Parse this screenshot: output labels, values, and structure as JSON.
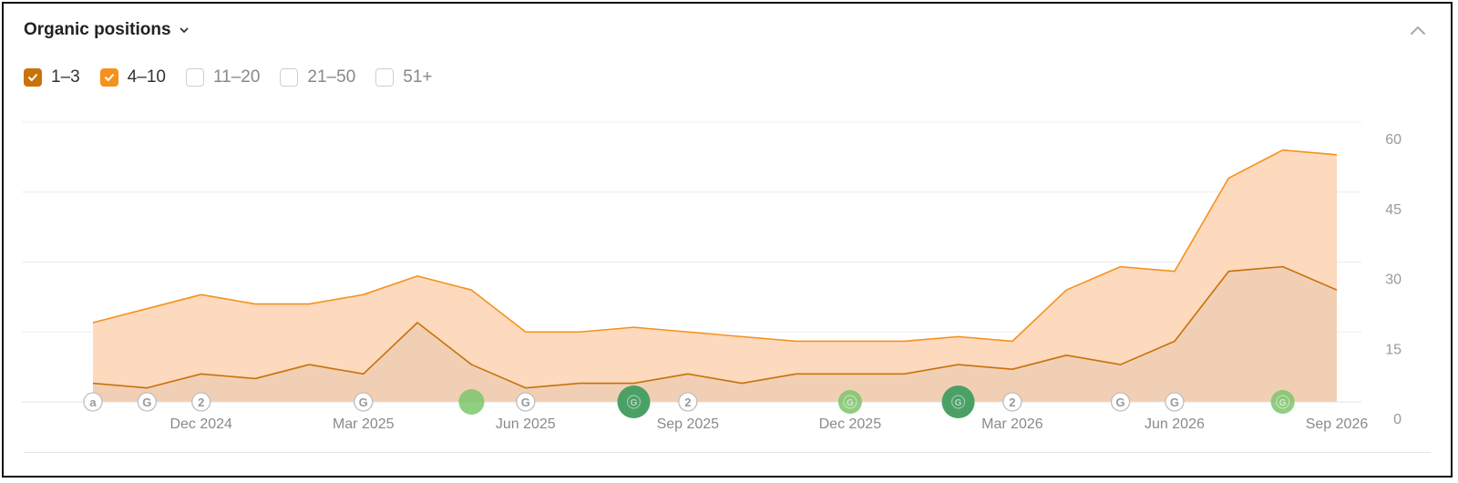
{
  "header": {
    "title": "Organic positions"
  },
  "legend": [
    {
      "label": "1–3",
      "checked": true,
      "color": "#c8720a"
    },
    {
      "label": "4–10",
      "checked": true,
      "color": "#f5921e"
    },
    {
      "label": "11–20",
      "checked": false,
      "color": "#cccccc"
    },
    {
      "label": "21–50",
      "checked": false,
      "color": "#cccccc"
    },
    {
      "label": "51+",
      "checked": false,
      "color": "#cccccc"
    }
  ],
  "chart_data": {
    "type": "area",
    "stacked": true,
    "title": "",
    "xlabel": "",
    "ylabel": "",
    "ylim": [
      0,
      60
    ],
    "y_ticks": [
      "60",
      "45",
      "30",
      "15",
      "0"
    ],
    "x_tick_labels": [
      "Dec 2024",
      "Mar 2025",
      "Jun 2025",
      "Sep 2025",
      "Dec 2025",
      "Mar 2026",
      "Jun 2026",
      "Sep 2026"
    ],
    "x": [
      "2024-10",
      "2024-11",
      "2024-12",
      "2025-01",
      "2025-02",
      "2025-03",
      "2025-04",
      "2025-05",
      "2025-06",
      "2025-07",
      "2025-08",
      "2025-09",
      "2025-10",
      "2025-11",
      "2025-12",
      "2026-01",
      "2026-02",
      "2026-03",
      "2026-04",
      "2026-05",
      "2026-06",
      "2026-07",
      "2026-08",
      "2026-09"
    ],
    "series": [
      {
        "name": "1–3",
        "color": "#c8720a",
        "fill": "#f0cfb5",
        "values": [
          4,
          3,
          6,
          5,
          8,
          6,
          17,
          8,
          3,
          4,
          4,
          6,
          4,
          6,
          6,
          6,
          8,
          7,
          10,
          8,
          13,
          28,
          29,
          24
        ]
      },
      {
        "name": "4–10",
        "color": "#f5921e",
        "fill": "#fdd9bd",
        "values": [
          13,
          17,
          17,
          16,
          13,
          17,
          10,
          16,
          12,
          11,
          12,
          9,
          10,
          7,
          7,
          7,
          6,
          6,
          14,
          21,
          15,
          20,
          25,
          29
        ]
      }
    ],
    "grid": true,
    "events": [
      {
        "date": "2024-10",
        "kind": "letter",
        "label": "a"
      },
      {
        "date": "2024-11",
        "kind": "letter",
        "label": "G"
      },
      {
        "date": "2024-12",
        "kind": "letter",
        "label": "2"
      },
      {
        "date": "2025-03",
        "kind": "letter",
        "label": "G"
      },
      {
        "date": "2025-05",
        "kind": "dot",
        "label": "",
        "size": "md",
        "color": "#7cc56b"
      },
      {
        "date": "2025-06",
        "kind": "letter",
        "label": "G"
      },
      {
        "date": "2025-08",
        "kind": "dot",
        "label": "G",
        "size": "lg",
        "color": "#4ba066"
      },
      {
        "date": "2025-09",
        "kind": "letter",
        "label": "2"
      },
      {
        "date": "2025-12",
        "kind": "dot",
        "label": "G",
        "size": "sm",
        "color": "#7cc56b"
      },
      {
        "date": "2026-02",
        "kind": "dot",
        "label": "G",
        "size": "lg",
        "color": "#4ba066"
      },
      {
        "date": "2026-03",
        "kind": "letter",
        "label": "2"
      },
      {
        "date": "2026-05",
        "kind": "letter",
        "label": "G"
      },
      {
        "date": "2026-06",
        "kind": "letter",
        "label": "G"
      },
      {
        "date": "2026-08",
        "kind": "dot",
        "label": "G",
        "size": "sm",
        "color": "#7cc56b"
      }
    ]
  }
}
